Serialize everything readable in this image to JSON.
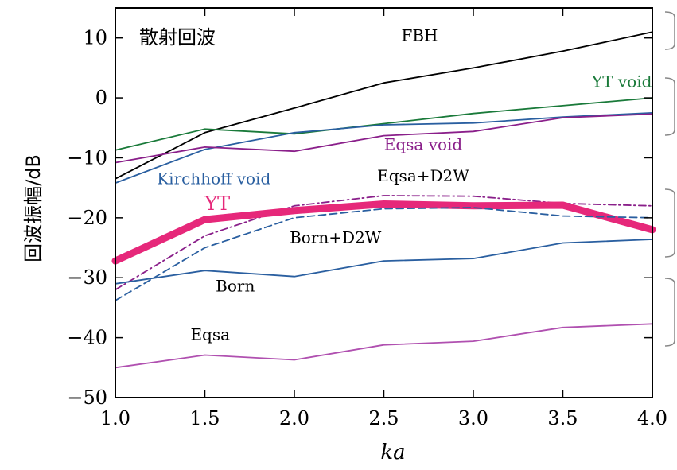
{
  "chart_data": {
    "type": "line",
    "title": "散射回波",
    "xlabel": "ka",
    "ylabel": "回波振幅/dB",
    "xlim": [
      1.0,
      4.0
    ],
    "ylim": [
      -50,
      15
    ],
    "xticks": [
      1.0,
      1.5,
      2.0,
      2.5,
      3.0,
      3.5,
      4.0
    ],
    "xtick_labels": [
      "1.0",
      "1.5",
      "2.0",
      "2.5",
      "3.0",
      "3.5",
      "4.0"
    ],
    "yticks": [
      10,
      0,
      -10,
      -20,
      -30,
      -40,
      -50
    ],
    "ytick_labels": [
      "10",
      "0",
      "−10",
      "−20",
      "−30",
      "−40",
      "−50"
    ],
    "x": [
      1.0,
      1.5,
      2.0,
      2.5,
      3.0,
      3.5,
      4.0
    ],
    "series": [
      {
        "name": "FBH",
        "color": "#000000",
        "style": "solid",
        "width": "thin",
        "values": [
          -13.5,
          -5.8,
          -1.7,
          2.5,
          5.0,
          7.8,
          11.0
        ]
      },
      {
        "name": "YT void",
        "color": "#1a7a3a",
        "style": "solid",
        "width": "thin",
        "values": [
          -8.7,
          -5.2,
          -6.0,
          -4.3,
          -2.6,
          -1.3,
          0.0
        ]
      },
      {
        "name": "Kirchhoff void",
        "color": "#2a5fa0",
        "style": "solid",
        "width": "thin",
        "values": [
          -14.2,
          -8.6,
          -5.8,
          -4.5,
          -4.2,
          -3.2,
          -2.5
        ]
      },
      {
        "name": "Eqsa void",
        "color": "#8a1f8a",
        "style": "solid",
        "width": "thin",
        "values": [
          -10.8,
          -8.2,
          -8.9,
          -6.3,
          -5.6,
          -3.3,
          -2.7
        ]
      },
      {
        "name": "Eqsa+D2W",
        "color": "#8a1f8a",
        "style": "dashdot",
        "width": "thin",
        "values": [
          -32.0,
          -23.0,
          -18.0,
          -16.3,
          -16.4,
          -17.6,
          -18.0
        ]
      },
      {
        "name": "YT",
        "color": "#e6287a",
        "style": "solid",
        "width": "thick",
        "values": [
          -27.2,
          -20.3,
          -18.8,
          -17.7,
          -18.0,
          -17.9,
          -22.0
        ]
      },
      {
        "name": "Born+D2W",
        "color": "#2a5fa0",
        "style": "dashed",
        "width": "thin",
        "values": [
          -33.8,
          -25.0,
          -20.0,
          -18.5,
          -18.3,
          -19.7,
          -20.0
        ]
      },
      {
        "name": "Born",
        "color": "#2a5fa0",
        "style": "solid",
        "width": "thin",
        "values": [
          -31.0,
          -28.8,
          -29.8,
          -27.2,
          -26.8,
          -24.2,
          -23.6
        ]
      },
      {
        "name": "Eqsa",
        "color": "#b050b0",
        "style": "solid",
        "width": "thin",
        "values": [
          -45.0,
          -42.9,
          -43.7,
          -41.2,
          -40.6,
          -38.3,
          -37.7
        ]
      }
    ],
    "annotations": [
      {
        "text": "FBH",
        "color": "#000000",
        "x": 2.7,
        "y": 9.5
      },
      {
        "text": "YT void",
        "color": "#1a7a3a",
        "x": 3.83,
        "y": 1.8
      },
      {
        "text": "Eqsa void",
        "color": "#8a1f8a",
        "x": 2.72,
        "y": -8.7
      },
      {
        "text": "Kirchhoff void",
        "color": "#2a5fa0",
        "x": 1.55,
        "y": -14.4
      },
      {
        "text": "Eqsa+D2W",
        "color": "#000000",
        "x": 2.72,
        "y": -13.9
      },
      {
        "text": "YT",
        "color": "#e6287a",
        "x": 1.57,
        "y": -18.7
      },
      {
        "text": "Born+D2W",
        "color": "#000000",
        "x": 2.23,
        "y": -24.2
      },
      {
        "text": "Born",
        "color": "#000000",
        "x": 1.67,
        "y": -32.3
      },
      {
        "text": "Eqsa",
        "color": "#000000",
        "x": 1.53,
        "y": -40.4
      }
    ]
  }
}
